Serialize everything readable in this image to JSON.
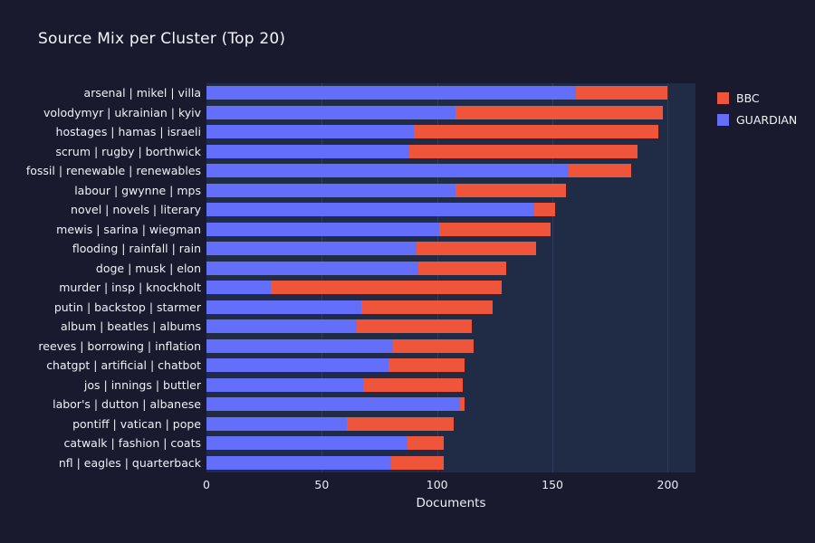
{
  "colors": {
    "background": "#191a2e",
    "plot_background": "#202b45",
    "grid": "#2d3b5c",
    "text": "#f3f5fb",
    "bbc": "#EF553B",
    "guardian": "#636EFA"
  },
  "chart_data": {
    "type": "bar",
    "orientation": "horizontal",
    "stacked": true,
    "title": "Source Mix per Cluster (Top 20)",
    "xlabel": "Documents",
    "ylabel": "",
    "xlim": [
      0,
      212
    ],
    "xticks": [
      0,
      50,
      100,
      150,
      200
    ],
    "grid": true,
    "legend_position": "top-right",
    "categories": [
      "arsenal | mikel | villa",
      "volodymyr | ukrainian | kyiv",
      "hostages | hamas | israeli",
      "scrum | rugby | borthwick",
      "fossil | renewable | renewables",
      "labour | gwynne | mps",
      "novel | novels | literary",
      "mewis | sarina | wiegman",
      "flooding | rainfall | rain",
      "doge | musk | elon",
      "murder | insp | knockholt",
      "putin | backstop | starmer",
      "album | beatles | albums",
      "reeves | borrowing | inflation",
      "chatgpt | artificial | chatbot",
      "jos | innings | buttler",
      "labor's | dutton | albanese",
      "pontiff | vatican | pope",
      "catwalk | fashion | coats",
      "nfl | eagles | quarterback"
    ],
    "series": [
      {
        "name": "GUARDIAN",
        "color": "#636EFA",
        "values": [
          160,
          108,
          90,
          88,
          157,
          108,
          142,
          101,
          91,
          92,
          28,
          67,
          65,
          81,
          79,
          68,
          110,
          61,
          87,
          80
        ]
      },
      {
        "name": "BBC",
        "color": "#EF553B",
        "values": [
          40,
          90,
          106,
          99,
          27,
          48,
          9,
          48,
          52,
          38,
          100,
          57,
          50,
          35,
          33,
          43,
          2,
          46,
          16,
          23
        ]
      }
    ],
    "legend": [
      {
        "label": "BBC",
        "color": "#EF553B"
      },
      {
        "label": "GUARDIAN",
        "color": "#636EFA"
      }
    ]
  }
}
